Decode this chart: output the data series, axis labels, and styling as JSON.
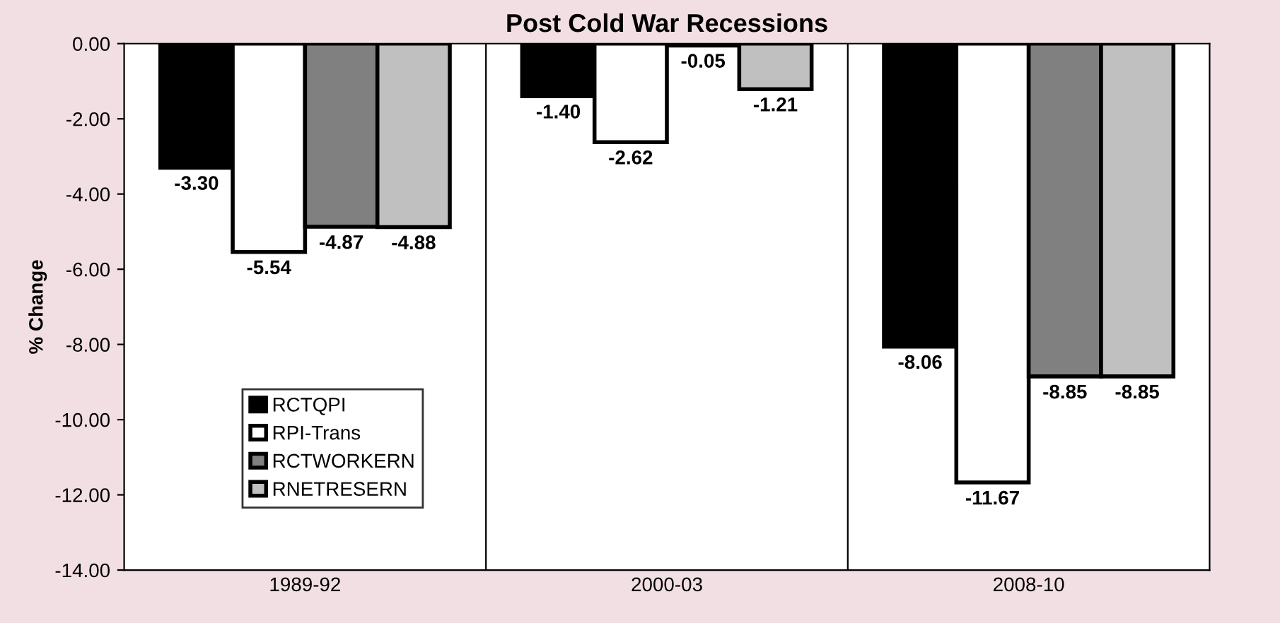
{
  "chart_data": {
    "type": "bar",
    "title": "Post Cold War Recessions",
    "ylabel": "% Change",
    "categories": [
      "1989-92",
      "2000-03",
      "2008-10"
    ],
    "series": [
      {
        "name": "RCTQPI",
        "color": "#000000",
        "values": [
          -3.3,
          -1.4,
          -8.06
        ],
        "value_labels": [
          "-3.30",
          "-1.40",
          "-8.06"
        ]
      },
      {
        "name": "RPI-Trans",
        "color": "#ffffff",
        "values": [
          -5.54,
          -2.62,
          -11.67
        ],
        "value_labels": [
          "-5.54",
          "-2.62",
          "-11.67"
        ]
      },
      {
        "name": "RCTWORKERN",
        "color": "#808080",
        "values": [
          -4.87,
          -0.05,
          -8.85
        ],
        "value_labels": [
          "-4.87",
          "-0.05",
          "-8.85"
        ]
      },
      {
        "name": "RNETRESERN",
        "color": "#c0c0c0",
        "values": [
          -4.88,
          -1.21,
          -8.85
        ],
        "value_labels": [
          "-4.88",
          "-1.21",
          "-8.85"
        ]
      }
    ],
    "ylim": [
      -14,
      0
    ],
    "yticks": [
      {
        "value": -14,
        "label": "-14.00"
      },
      {
        "value": -12,
        "label": "-12.00"
      },
      {
        "value": -10,
        "label": "-10.00"
      },
      {
        "value": -8,
        "label": "-8.00"
      },
      {
        "value": -6,
        "label": "-6.00"
      },
      {
        "value": -4,
        "label": "-4.00"
      },
      {
        "value": -2,
        "label": "-2.00"
      },
      {
        "value": 0,
        "label": "0.00"
      }
    ],
    "grid": false,
    "legend": "bottom left"
  }
}
